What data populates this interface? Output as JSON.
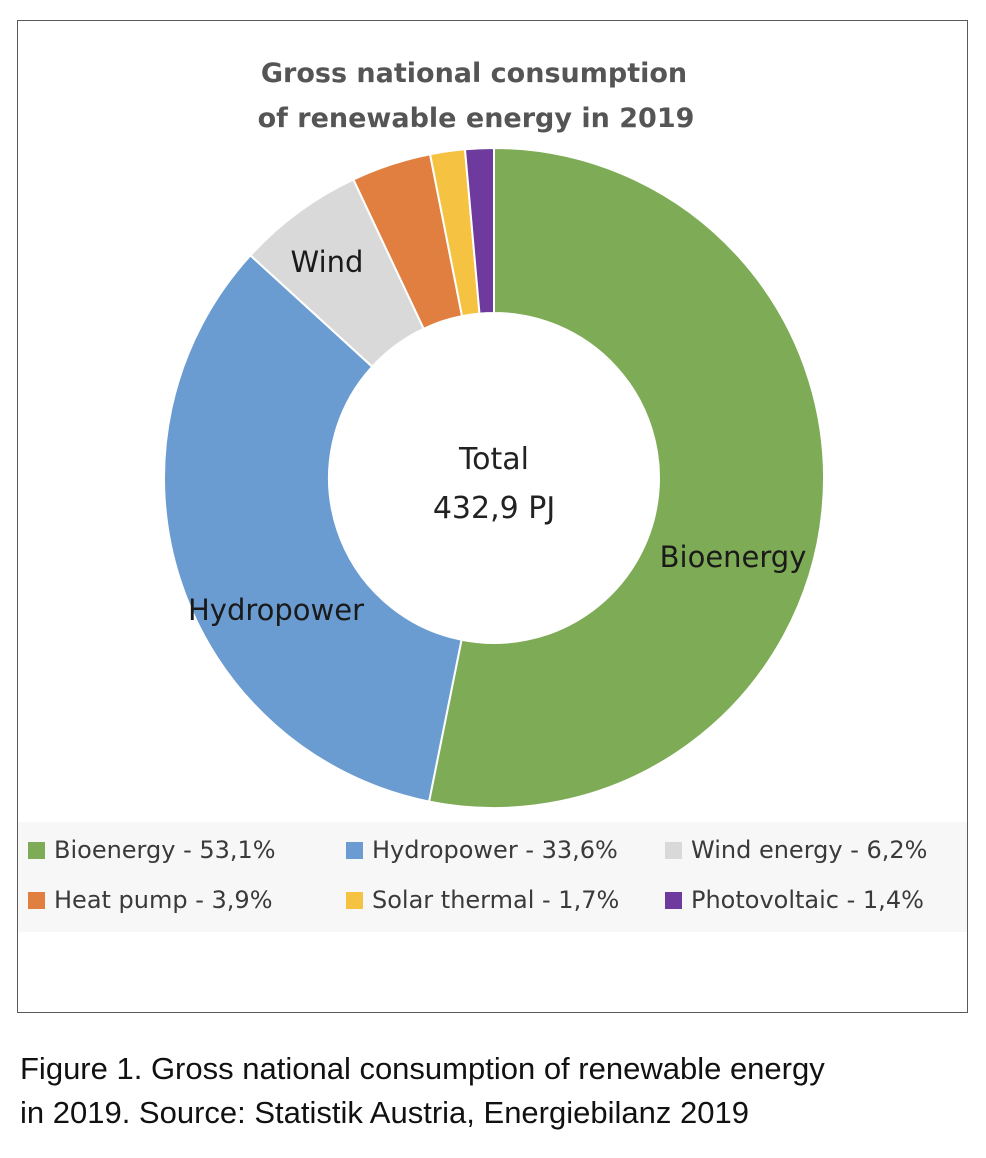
{
  "chart_data": {
    "type": "pie",
    "variant": "donut",
    "title_lines": [
      "Gross national consumption",
      "of renewable energy in 2019"
    ],
    "center_label": [
      "Total",
      "432,9 PJ"
    ],
    "slices": [
      {
        "name": "Bioenergy",
        "value": 53.1,
        "color": "#7eab55"
      },
      {
        "name": "Hydropower",
        "value": 33.6,
        "color": "#6a9bd1"
      },
      {
        "name": "Wind energy",
        "value": 6.2,
        "color": "#d9d9d9"
      },
      {
        "name": "Heat pump",
        "value": 3.9,
        "color": "#e07f3f"
      },
      {
        "name": "Solar thermal",
        "value": 1.7,
        "color": "#f5c242"
      },
      {
        "name": "Photovoltaic",
        "value": 1.4,
        "color": "#6e3a9e"
      }
    ],
    "slice_labels": {
      "Bioenergy": "Bioenergy",
      "Hydropower": "Hydropower",
      "Wind energy": "Wind"
    },
    "legend": [
      "Bioenergy - 53,1%",
      "Hydropower - 33,6%",
      "Wind energy - 6,2%",
      "Heat pump - 3,9%",
      "Solar thermal - 1,7%",
      "Photovoltaic - 1,4%"
    ],
    "legend_placement": "bottom"
  },
  "caption": {
    "line1": "Figure 1. Gross national consumption of renewable energy",
    "line2": " in 2019. Source: Statistik Austria, Energiebilanz 2019"
  }
}
